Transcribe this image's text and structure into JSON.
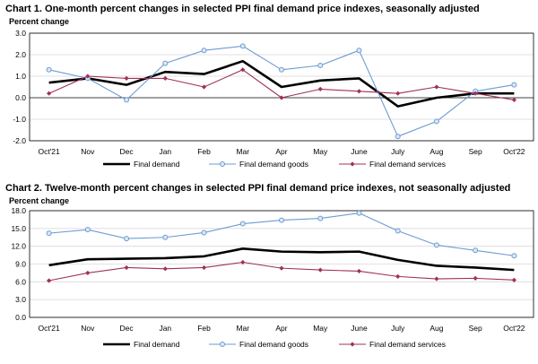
{
  "chart_data": [
    {
      "type": "line",
      "title": "Chart 1. One-month percent changes in selected PPI final demand price indexes, seasonally adjusted",
      "ylabel": "Percent change",
      "ylim": [
        -2.0,
        3.0
      ],
      "yticks": [
        "3.0",
        "2.0",
        "1.0",
        "0.0",
        "-1.0",
        "-2.0"
      ],
      "grid": true,
      "legend_position": "bottom",
      "categories": [
        "Oct'21",
        "Nov",
        "Dec",
        "Jan",
        "Feb",
        "Mar",
        "Apr",
        "May",
        "June",
        "July",
        "Aug",
        "Sep",
        "Oct'22"
      ],
      "series": [
        {
          "name": "Final demand",
          "color": "#000000",
          "marker": "none",
          "values": [
            0.7,
            0.9,
            0.6,
            1.2,
            1.1,
            1.7,
            0.5,
            0.8,
            0.9,
            -0.4,
            0.0,
            0.2,
            0.2
          ]
        },
        {
          "name": "Final demand goods",
          "color": "#6c9bd2",
          "marker": "circle",
          "values": [
            1.3,
            0.9,
            -0.1,
            1.6,
            2.2,
            2.4,
            1.3,
            1.5,
            2.2,
            -1.8,
            -1.1,
            0.3,
            0.6
          ]
        },
        {
          "name": "Final demand services",
          "color": "#a0305a",
          "marker": "diamond",
          "values": [
            0.2,
            1.0,
            0.9,
            0.9,
            0.5,
            1.3,
            0.0,
            0.4,
            0.3,
            0.2,
            0.5,
            0.2,
            -0.1
          ]
        }
      ]
    },
    {
      "type": "line",
      "title": "Chart 2. Twelve-month percent changes in selected PPI final demand price indexes, not seasonally adjusted",
      "ylabel": "Percent change",
      "ylim": [
        0.0,
        18.0
      ],
      "yticks": [
        "18.0",
        "15.0",
        "12.0",
        "9.0",
        "6.0",
        "3.0",
        "0.0"
      ],
      "grid": true,
      "legend_position": "bottom",
      "categories": [
        "Oct'21",
        "Nov",
        "Dec",
        "Jan",
        "Feb",
        "Mar",
        "Apr",
        "May",
        "June",
        "July",
        "Aug",
        "Sep",
        "Oct'22"
      ],
      "series": [
        {
          "name": "Final demand",
          "color": "#000000",
          "marker": "none",
          "values": [
            8.8,
            9.8,
            9.9,
            10.0,
            10.3,
            11.6,
            11.1,
            11.0,
            11.1,
            9.7,
            8.7,
            8.4,
            8.0
          ]
        },
        {
          "name": "Final demand goods",
          "color": "#6c9bd2",
          "marker": "circle",
          "values": [
            14.2,
            14.8,
            13.3,
            13.5,
            14.3,
            15.8,
            16.4,
            16.7,
            17.6,
            14.6,
            12.2,
            11.3,
            10.4
          ]
        },
        {
          "name": "Final demand services",
          "color": "#a0305a",
          "marker": "diamond",
          "values": [
            6.2,
            7.5,
            8.4,
            8.2,
            8.4,
            9.3,
            8.3,
            8.0,
            7.8,
            6.9,
            6.5,
            6.6,
            6.3
          ]
        }
      ]
    }
  ]
}
